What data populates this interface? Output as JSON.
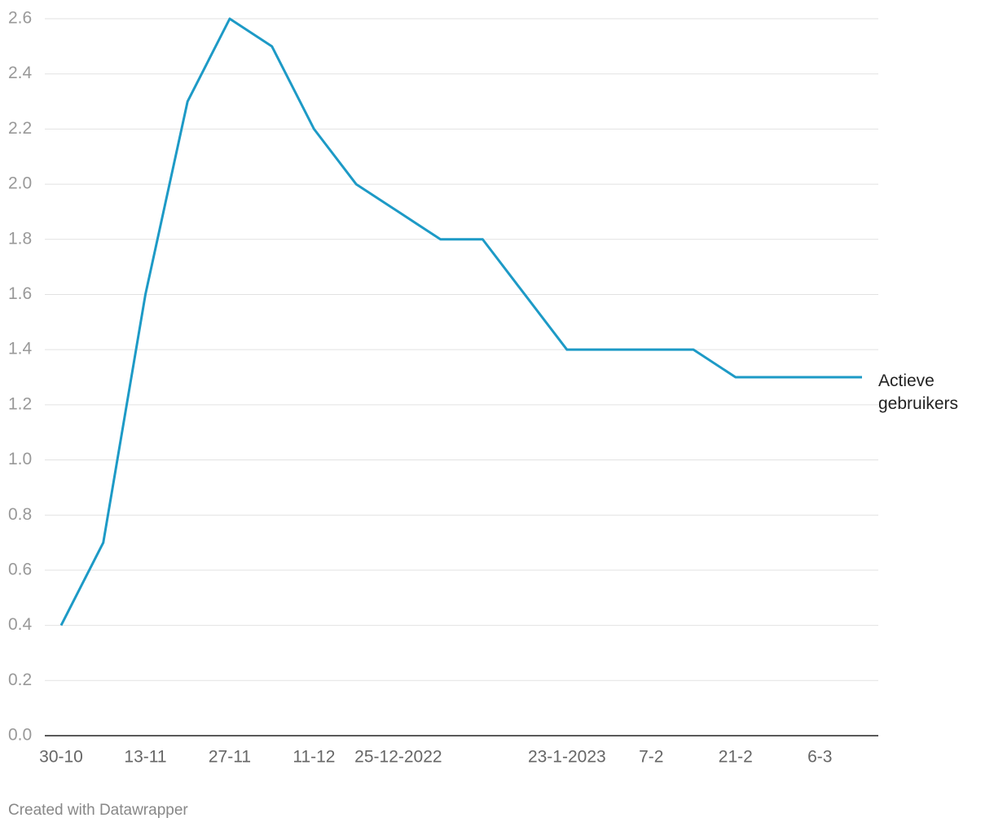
{
  "chart_data": {
    "type": "line",
    "categories": [
      "30-10",
      null,
      "13-11",
      null,
      "27-11",
      null,
      "11-12",
      null,
      "25-12-2022",
      null,
      null,
      null,
      "23-1-2023",
      null,
      "7-2",
      null,
      "21-2",
      null,
      "6-3",
      null
    ],
    "series": [
      {
        "name": "Actieve gebruikers",
        "color": "#1d9ac6",
        "values": [
          0.4,
          0.7,
          1.6,
          2.3,
          2.6,
          2.5,
          2.2,
          2.0,
          1.9,
          1.8,
          1.8,
          1.6,
          1.4,
          1.4,
          1.4,
          1.4,
          1.3,
          1.3,
          1.3,
          1.3
        ]
      }
    ],
    "ylim": [
      0,
      2.6
    ],
    "yticks": [
      {
        "value": 0,
        "label": "0.0"
      },
      0.2,
      0.4,
      0.6,
      0.8,
      {
        "value": 1,
        "label": "1.0"
      },
      1.2,
      1.4,
      1.6,
      1.8,
      {
        "value": 2,
        "label": "2.0"
      },
      2.2,
      2.4,
      2.6
    ],
    "grid": true,
    "footer": "Created with Datawrapper"
  }
}
